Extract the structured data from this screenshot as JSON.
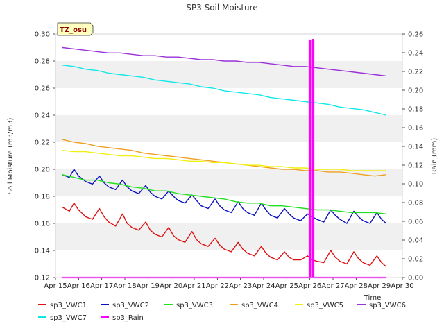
{
  "chart_data": {
    "type": "line",
    "title": "SP3 Soil Moisture",
    "xlabel": "Time",
    "ylabel": "Soil Moisture (m3/m3)",
    "y2label": "Rain (mm)",
    "badge": "TZ_osu",
    "x_tick_labels": [
      "Apr 15",
      "Apr 16",
      "Apr 17",
      "Apr 18",
      "Apr 19",
      "Apr 20",
      "Apr 21",
      "Apr 22",
      "Apr 23",
      "Apr 24",
      "Apr 25",
      "Apr 26",
      "Apr 27",
      "Apr 28",
      "Apr 29",
      "Apr 30"
    ],
    "xlim": [
      15,
      30
    ],
    "ylim": [
      0.12,
      0.3
    ],
    "y_ticks": [
      0.12,
      0.14,
      0.16,
      0.18,
      0.2,
      0.22,
      0.24,
      0.26,
      0.28,
      0.3
    ],
    "y_tick_labels": [
      "0.12",
      "0.14",
      "0.16",
      "0.18",
      "0.20",
      "0.22",
      "0.24",
      "0.26",
      "0.28",
      "0.30"
    ],
    "y2lim": [
      0.0,
      0.26
    ],
    "y2_ticks": [
      0,
      0.02,
      0.04,
      0.06,
      0.08,
      0.1,
      0.12,
      0.14,
      0.16,
      0.18,
      0.2,
      0.22,
      0.24,
      0.26
    ],
    "y2_tick_labels": [
      "0.00",
      "0.02",
      "0.04",
      "0.06",
      "0.08",
      "0.10",
      "0.12",
      "0.14",
      "0.16",
      "0.18",
      "0.20",
      "0.22",
      "0.24",
      "0.26"
    ],
    "series": [
      {
        "name": "sp3_VWC1",
        "color": "#e01010",
        "axis": "left",
        "x": [
          15.3,
          15.6,
          15.8,
          16.0,
          16.3,
          16.6,
          16.9,
          17.1,
          17.3,
          17.6,
          17.9,
          18.1,
          18.3,
          18.6,
          18.9,
          19.1,
          19.3,
          19.6,
          19.9,
          20.1,
          20.3,
          20.6,
          20.9,
          21.1,
          21.3,
          21.6,
          21.9,
          22.1,
          22.3,
          22.6,
          22.9,
          23.1,
          23.3,
          23.6,
          23.9,
          24.1,
          24.3,
          24.6,
          24.9,
          25.1,
          25.3,
          25.6,
          25.9,
          26.1,
          26.3,
          26.6,
          26.9,
          27.1,
          27.3,
          27.6,
          27.9,
          28.1,
          28.3,
          28.6,
          28.9,
          29.1,
          29.3
        ],
        "y": [
          0.172,
          0.169,
          0.175,
          0.17,
          0.165,
          0.163,
          0.171,
          0.165,
          0.161,
          0.158,
          0.167,
          0.16,
          0.157,
          0.155,
          0.161,
          0.155,
          0.152,
          0.15,
          0.157,
          0.151,
          0.148,
          0.146,
          0.154,
          0.148,
          0.145,
          0.143,
          0.149,
          0.144,
          0.141,
          0.139,
          0.146,
          0.141,
          0.138,
          0.136,
          0.143,
          0.138,
          0.135,
          0.133,
          0.139,
          0.135,
          0.133,
          0.133,
          0.136,
          0.133,
          0.132,
          0.131,
          0.14,
          0.135,
          0.132,
          0.13,
          0.139,
          0.134,
          0.131,
          0.129,
          0.136,
          0.131,
          0.128
        ]
      },
      {
        "name": "sp3_VWC2",
        "color": "#0a10c0",
        "axis": "left",
        "x": [
          15.3,
          15.6,
          15.8,
          16.0,
          16.3,
          16.6,
          16.9,
          17.1,
          17.3,
          17.6,
          17.9,
          18.1,
          18.3,
          18.6,
          18.9,
          19.1,
          19.3,
          19.6,
          19.9,
          20.1,
          20.3,
          20.6,
          20.9,
          21.1,
          21.3,
          21.6,
          21.9,
          22.1,
          22.3,
          22.6,
          22.9,
          23.1,
          23.3,
          23.6,
          23.9,
          24.1,
          24.3,
          24.6,
          24.9,
          25.1,
          25.3,
          25.6,
          25.9,
          26.1,
          26.3,
          26.6,
          26.9,
          27.1,
          27.3,
          27.6,
          27.9,
          28.1,
          28.3,
          28.6,
          28.9,
          29.1,
          29.3
        ],
        "y": [
          0.196,
          0.194,
          0.2,
          0.195,
          0.191,
          0.189,
          0.195,
          0.19,
          0.187,
          0.185,
          0.192,
          0.187,
          0.184,
          0.182,
          0.188,
          0.183,
          0.18,
          0.178,
          0.184,
          0.18,
          0.177,
          0.175,
          0.181,
          0.177,
          0.173,
          0.171,
          0.178,
          0.173,
          0.17,
          0.168,
          0.176,
          0.171,
          0.168,
          0.166,
          0.175,
          0.17,
          0.166,
          0.164,
          0.171,
          0.167,
          0.164,
          0.162,
          0.167,
          0.165,
          0.163,
          0.161,
          0.17,
          0.166,
          0.163,
          0.16,
          0.169,
          0.165,
          0.162,
          0.16,
          0.168,
          0.163,
          0.16
        ]
      },
      {
        "name": "sp3_VWC3",
        "color": "#20e020",
        "axis": "left",
        "x": [
          15.3,
          15.8,
          16.3,
          16.8,
          17.3,
          17.8,
          18.3,
          18.8,
          19.3,
          19.8,
          20.3,
          20.8,
          21.3,
          21.8,
          22.3,
          22.8,
          23.3,
          23.8,
          24.3,
          24.8,
          25.3,
          25.8,
          26.3,
          26.8,
          27.3,
          27.8,
          28.3,
          28.8,
          29.3
        ],
        "y": [
          0.196,
          0.194,
          0.192,
          0.192,
          0.19,
          0.189,
          0.187,
          0.186,
          0.184,
          0.184,
          0.182,
          0.181,
          0.18,
          0.179,
          0.178,
          0.176,
          0.175,
          0.175,
          0.173,
          0.173,
          0.172,
          0.171,
          0.17,
          0.17,
          0.169,
          0.168,
          0.168,
          0.168,
          0.167
        ]
      },
      {
        "name": "sp3_VWC4",
        "color": "#f0a020",
        "axis": "left",
        "x": [
          15.3,
          15.8,
          16.3,
          16.8,
          17.3,
          17.8,
          18.3,
          18.8,
          19.3,
          19.8,
          20.3,
          20.8,
          21.3,
          21.8,
          22.3,
          22.8,
          23.3,
          23.8,
          24.3,
          24.8,
          25.3,
          25.8,
          26.3,
          26.8,
          27.3,
          27.8,
          28.3,
          28.8,
          29.3
        ],
        "y": [
          0.222,
          0.22,
          0.219,
          0.217,
          0.216,
          0.215,
          0.214,
          0.212,
          0.211,
          0.21,
          0.209,
          0.208,
          0.207,
          0.206,
          0.205,
          0.204,
          0.203,
          0.202,
          0.201,
          0.2,
          0.2,
          0.199,
          0.199,
          0.198,
          0.198,
          0.197,
          0.196,
          0.195,
          0.196
        ]
      },
      {
        "name": "sp3_VWC5",
        "color": "#f0f010",
        "axis": "left",
        "x": [
          15.3,
          15.8,
          16.3,
          16.8,
          17.3,
          17.8,
          18.3,
          18.8,
          19.3,
          19.8,
          20.3,
          20.8,
          21.3,
          21.8,
          22.3,
          22.8,
          23.3,
          23.8,
          24.3,
          24.8,
          25.3,
          25.8,
          26.3,
          26.8,
          27.3,
          27.8,
          28.3,
          28.8,
          29.3
        ],
        "y": [
          0.214,
          0.213,
          0.213,
          0.212,
          0.211,
          0.21,
          0.21,
          0.209,
          0.208,
          0.208,
          0.207,
          0.206,
          0.206,
          0.205,
          0.205,
          0.204,
          0.203,
          0.203,
          0.202,
          0.202,
          0.201,
          0.201,
          0.2,
          0.2,
          0.2,
          0.199,
          0.199,
          0.199,
          0.199
        ]
      },
      {
        "name": "sp3_VWC6",
        "color": "#9a30d8",
        "axis": "left",
        "x": [
          15.3,
          15.8,
          16.3,
          16.8,
          17.3,
          17.8,
          18.3,
          18.8,
          19.3,
          19.8,
          20.3,
          20.8,
          21.3,
          21.8,
          22.3,
          22.8,
          23.3,
          23.8,
          24.3,
          24.8,
          25.3,
          25.8,
          26.3,
          26.8,
          27.3,
          27.8,
          28.3,
          28.8,
          29.3
        ],
        "y": [
          0.29,
          0.289,
          0.288,
          0.287,
          0.286,
          0.286,
          0.285,
          0.284,
          0.284,
          0.283,
          0.283,
          0.282,
          0.281,
          0.281,
          0.28,
          0.28,
          0.279,
          0.279,
          0.278,
          0.277,
          0.276,
          0.276,
          0.275,
          0.274,
          0.273,
          0.272,
          0.271,
          0.27,
          0.269
        ]
      },
      {
        "name": "sp3_VWC7",
        "color": "#10e8e8",
        "axis": "left",
        "x": [
          15.3,
          15.8,
          16.3,
          16.8,
          17.3,
          17.8,
          18.3,
          18.8,
          19.3,
          19.8,
          20.3,
          20.8,
          21.3,
          21.8,
          22.3,
          22.8,
          23.3,
          23.8,
          24.3,
          24.8,
          25.3,
          25.8,
          26.3,
          26.8,
          27.3,
          27.8,
          28.3,
          28.8,
          29.3
        ],
        "y": [
          0.277,
          0.276,
          0.274,
          0.273,
          0.271,
          0.27,
          0.269,
          0.268,
          0.266,
          0.265,
          0.264,
          0.263,
          0.261,
          0.26,
          0.258,
          0.257,
          0.256,
          0.255,
          0.253,
          0.252,
          0.251,
          0.25,
          0.249,
          0.248,
          0.246,
          0.245,
          0.244,
          0.242,
          0.24
        ]
      },
      {
        "name": "sp3_Rain",
        "color": "#ff00ff",
        "axis": "right",
        "type": "step",
        "x": [
          15.3,
          25.98,
          25.98,
          26.04,
          26.04,
          26.12,
          26.12,
          26.16,
          26.16,
          29.3
        ],
        "y": [
          0.0,
          0.0,
          0.253,
          0.253,
          0.0,
          0.0,
          0.254,
          0.254,
          0.0,
          0.0
        ]
      }
    ],
    "grid_bands": true,
    "legend_position": "bottom"
  }
}
